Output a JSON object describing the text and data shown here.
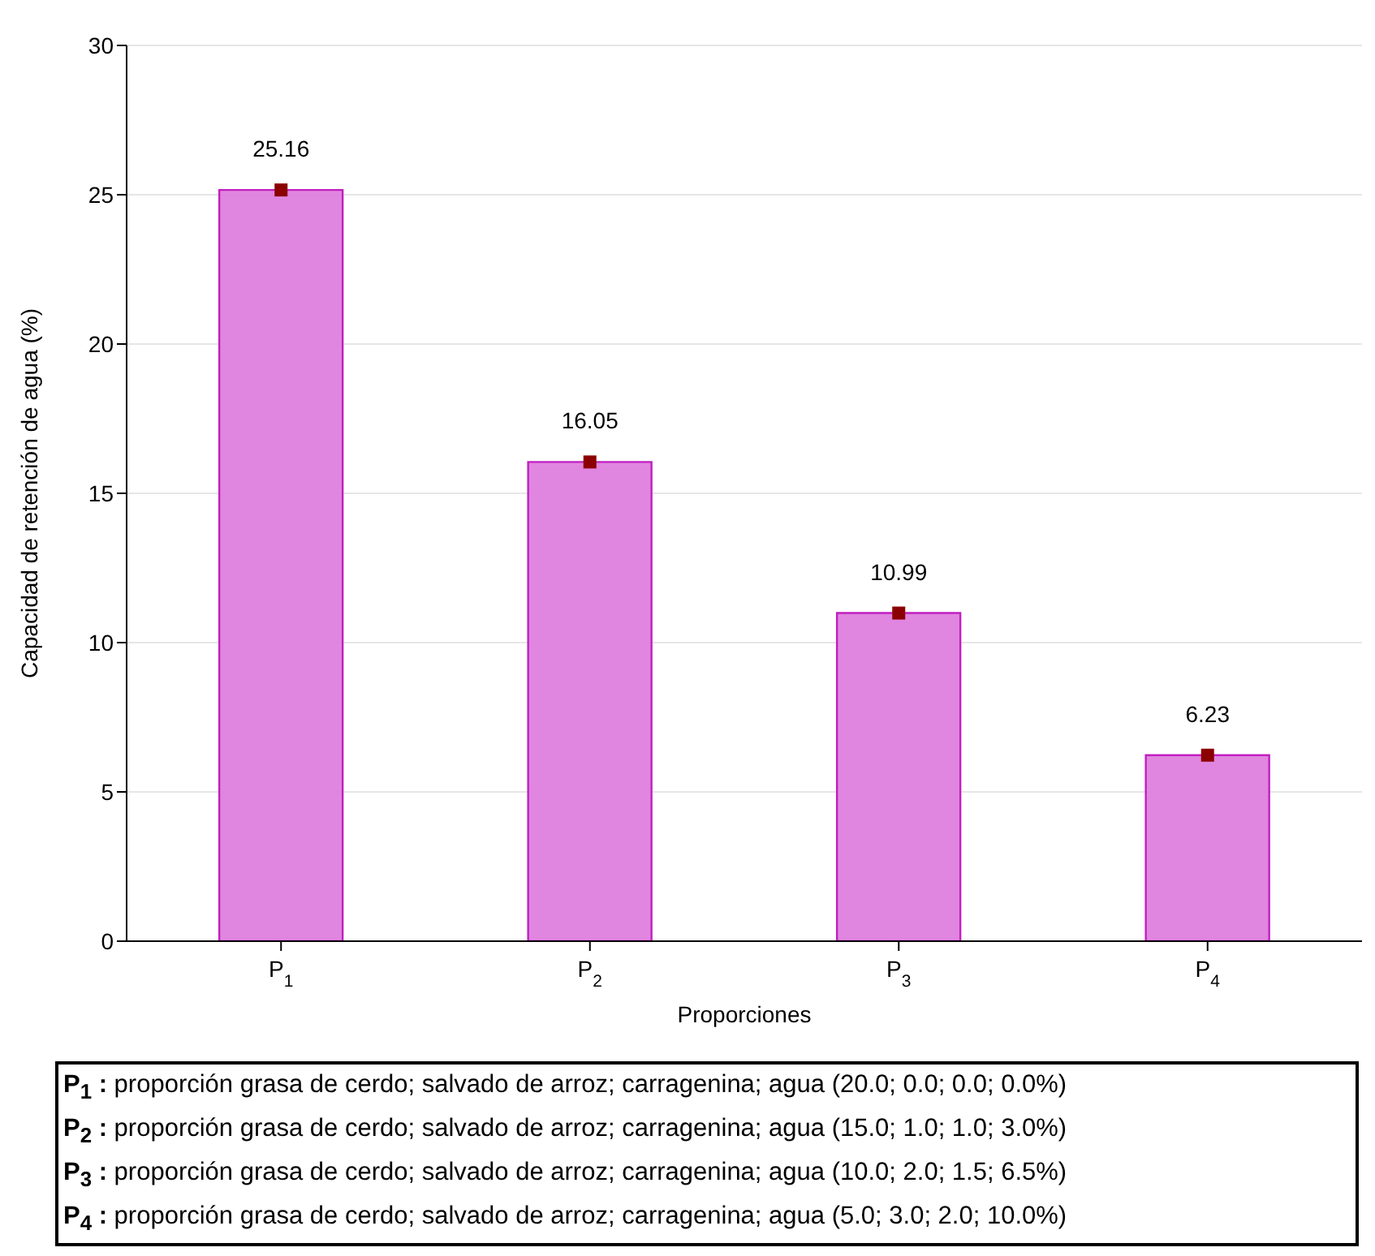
{
  "chart_data": {
    "type": "bar",
    "xlabel": "Proporciones",
    "ylabel": "Capacidad de retención de agua (%)",
    "categories": [
      "P$_{1}$",
      "P$_{2}$",
      "P$_{3}$",
      "P$_{4}$"
    ],
    "series": [
      {
        "color": "#de80de",
        "values": [
          25.16,
          16.05,
          10.99,
          6.23
        ]
      },
      {
        "type": "scatter",
        "color": "#8b0000",
        "x": [
          "P$_{1}$",
          "P$_{2}$",
          "P$_{3}$",
          "P$_{4}$"
        ],
        "values": [
          25.16,
          16.05,
          10.99,
          6.23
        ],
        "value_labels": [
          "25.16",
          "16.05",
          "10.99",
          "6.23"
        ]
      }
    ],
    "ylim": [
      0,
      30
    ],
    "yticks": [
      0,
      5,
      10,
      15,
      20,
      25,
      30
    ],
    "grid": "y",
    "marker": "square",
    "legend": false,
    "annotations": [
      "P$_{1}$ : proporción grasa de cerdo; salvado de arroz; carragenina; agua (20.0; 0.0; 0.0; 0.0%)",
      "P$_{2}$ : proporción grasa de cerdo; salvado de arroz; carragenina; agua (15.0; 1.0; 1.0; 3.0%)",
      "P$_{3}$ : proporción grasa de cerdo; salvado de arroz; carragenina; agua (10.0; 2.0; 1.5; 6.5%)",
      "P$_{4}$ : proporción grasa de cerdo; salvado de arroz; carragenina; agua (5.0; 3.0; 2.0; 10.0%)"
    ]
  }
}
